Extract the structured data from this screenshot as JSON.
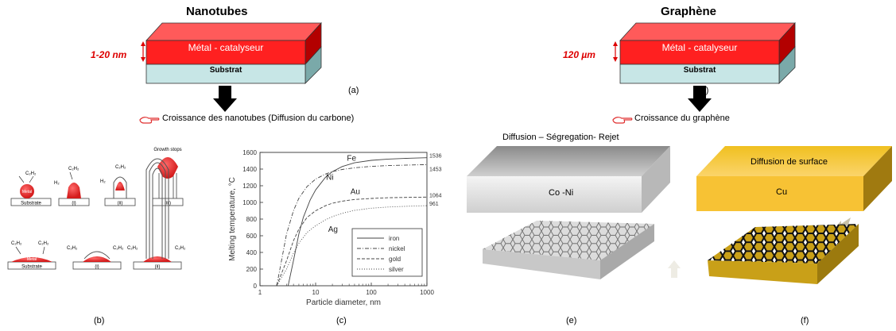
{
  "left": {
    "title": "Nanotubes",
    "thickness": "1-20 nm",
    "metal_label": "Métal - catalyseur",
    "substrate_label": "Substrat",
    "tag": "(a)",
    "growth_caption": "Croissance des nanotubes (Diffusion du carbone)"
  },
  "right": {
    "title": "Graphène",
    "thickness": "120 µm",
    "metal_label": "Métal - catalyseur",
    "substrate_label": "Substrat",
    "tag": "(d)",
    "growth_caption": "Croissance du graphène"
  },
  "panel_b": {
    "tag": "(b)",
    "gas": "C₂H₂",
    "h2": "H₂",
    "metal": "Metal",
    "substrate": "Substrate",
    "growth_stops": "Growth stops",
    "steps": [
      "(i)",
      "(ii)",
      "(iii)"
    ]
  },
  "panel_c": {
    "tag": "(c)"
  },
  "panel_e": {
    "tag": "(e)",
    "mechanism": "Diffusion – Ségregation- Rejet",
    "metal": "Co -Ni"
  },
  "panel_f": {
    "tag": "(f)",
    "mechanism": "Diffusion de surface",
    "metal": "Cu"
  },
  "colors": {
    "metal_red": "#ff2020",
    "substrate_cyan": "#c7e6e6",
    "thickness_text": "#dd0000",
    "gold": "#f7c234",
    "grey_block": "#d8d8d8"
  },
  "chart_data": {
    "type": "line",
    "xlabel": "Particle diameter, nm",
    "ylabel": "Melting temperature, °C",
    "xscale": "log",
    "xlim": [
      1,
      1000
    ],
    "ylim": [
      0,
      1600
    ],
    "xticks": [
      1,
      10,
      100,
      1000
    ],
    "yticks": [
      0,
      200,
      400,
      600,
      800,
      1000,
      1200,
      1400,
      1600
    ],
    "legend_position": "bottom-right",
    "series": [
      {
        "name": "iron",
        "label": "Fe",
        "bulk": "1536",
        "style": "solid",
        "x": [
          3.2,
          4,
          5,
          6,
          8,
          10,
          15,
          20,
          30,
          50,
          100,
          200,
          500,
          1000
        ],
        "y": [
          0,
          300,
          620,
          820,
          1030,
          1150,
          1300,
          1370,
          1430,
          1475,
          1505,
          1520,
          1530,
          1536
        ]
      },
      {
        "name": "nickel",
        "label": "Ni",
        "bulk": "1453",
        "style": "dashdot",
        "x": [
          2,
          3,
          4,
          5,
          7,
          10,
          15,
          20,
          30,
          50,
          100,
          200,
          500,
          1000
        ],
        "y": [
          0,
          620,
          900,
          1050,
          1190,
          1280,
          1340,
          1370,
          1395,
          1415,
          1432,
          1442,
          1449,
          1453
        ]
      },
      {
        "name": "gold",
        "label": "Au",
        "bulk": "1064",
        "style": "dashed",
        "x": [
          2,
          3,
          4,
          5,
          7,
          10,
          15,
          20,
          30,
          50,
          100,
          200,
          500,
          1000
        ],
        "y": [
          0,
          300,
          540,
          680,
          820,
          900,
          960,
          990,
          1015,
          1035,
          1048,
          1056,
          1061,
          1064
        ]
      },
      {
        "name": "silver",
        "label": "Ag",
        "bulk": "961",
        "style": "dotted",
        "x": [
          2,
          3,
          4,
          5,
          7,
          10,
          15,
          20,
          30,
          50,
          100,
          200,
          500,
          1000
        ],
        "y": [
          0,
          200,
          390,
          510,
          640,
          720,
          790,
          830,
          870,
          905,
          930,
          945,
          955,
          961
        ]
      }
    ]
  }
}
